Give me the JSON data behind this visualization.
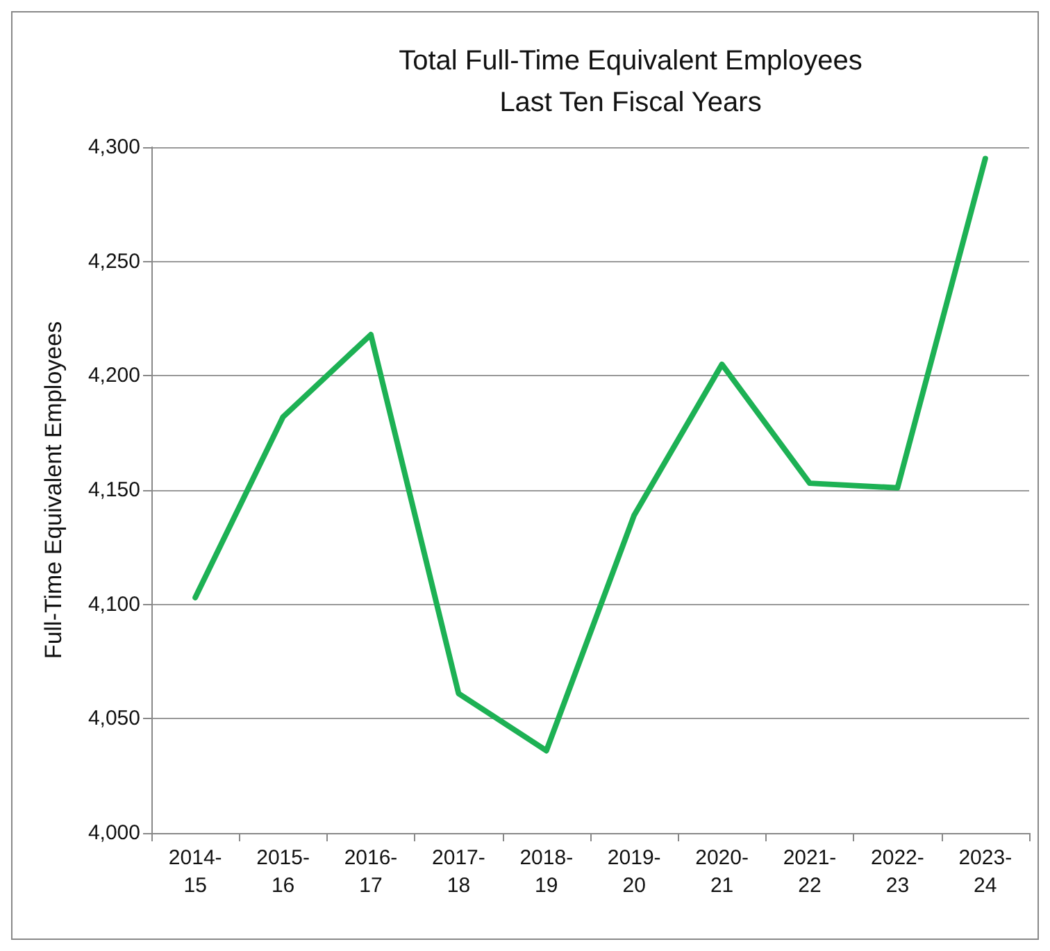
{
  "chart_data": {
    "type": "line",
    "title": "Total Full-Time Equivalent Employees",
    "subtitle": "Last Ten Fiscal Years",
    "ylabel": "Full-Time Equivalent Employees",
    "categories": [
      "2014-15",
      "2015-16",
      "2016-17",
      "2017-18",
      "2018-19",
      "2019-20",
      "2020-21",
      "2021-22",
      "2022-23",
      "2023-24"
    ],
    "series": [
      {
        "color": "#1db154",
        "values": [
          4103,
          4182,
          4218,
          4061,
          4036,
          4139,
          4205,
          4153,
          4151,
          4295
        ]
      }
    ],
    "ylim": [
      4000,
      4300
    ],
    "yticks": [
      {
        "value": 4000,
        "label": "4,000"
      },
      {
        "value": 4050,
        "label": "4,050"
      },
      {
        "value": 4100,
        "label": "4,100"
      },
      {
        "value": 4150,
        "label": "4,150"
      },
      {
        "value": 4200,
        "label": "4,200"
      },
      {
        "value": 4250,
        "label": "4,250"
      },
      {
        "value": 4300,
        "label": "4,300"
      }
    ],
    "grid": "y",
    "marker": "none",
    "line_style": "solid"
  }
}
